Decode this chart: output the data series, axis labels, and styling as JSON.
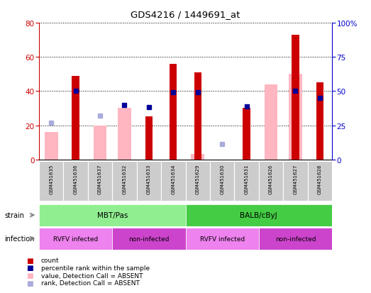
{
  "title": "GDS4216 / 1449691_at",
  "samples": [
    "GSM451635",
    "GSM451636",
    "GSM451637",
    "GSM451632",
    "GSM451633",
    "GSM451634",
    "GSM451629",
    "GSM451630",
    "GSM451631",
    "GSM451626",
    "GSM451627",
    "GSM451628"
  ],
  "count_values": [
    0,
    49,
    0,
    0,
    25,
    56,
    51,
    0,
    30,
    0,
    73,
    45
  ],
  "percentile_rank": [
    0,
    50,
    0,
    40,
    38,
    49,
    49,
    0,
    39,
    0,
    50,
    45
  ],
  "absent_value": [
    16,
    0,
    20,
    30,
    0,
    0,
    3,
    0,
    0,
    44,
    50,
    0
  ],
  "absent_rank": [
    27,
    0,
    32,
    0,
    0,
    0,
    0,
    11,
    0,
    0,
    0,
    0
  ],
  "has_count": [
    false,
    true,
    false,
    false,
    true,
    true,
    true,
    false,
    true,
    false,
    true,
    true
  ],
  "has_rank": [
    false,
    true,
    false,
    true,
    true,
    true,
    true,
    false,
    true,
    false,
    true,
    true
  ],
  "has_absent_value": [
    true,
    false,
    true,
    true,
    false,
    false,
    true,
    false,
    false,
    true,
    true,
    false
  ],
  "has_absent_rank": [
    true,
    false,
    true,
    false,
    false,
    false,
    false,
    true,
    false,
    false,
    false,
    false
  ],
  "strain_groups": [
    {
      "label": "MBT/Pas",
      "start": 0,
      "end": 6,
      "color": "#90EE90"
    },
    {
      "label": "BALB/cByJ",
      "start": 6,
      "end": 12,
      "color": "#44CC44"
    }
  ],
  "infection_groups": [
    {
      "label": "RVFV infected",
      "start": 0,
      "end": 3,
      "color": "#EE82EE"
    },
    {
      "label": "non-infected",
      "start": 3,
      "end": 6,
      "color": "#CC44CC"
    },
    {
      "label": "RVFV infected",
      "start": 6,
      "end": 9,
      "color": "#EE82EE"
    },
    {
      "label": "non-infected",
      "start": 9,
      "end": 12,
      "color": "#CC44CC"
    }
  ],
  "ylim_left": [
    0,
    80
  ],
  "ylim_right": [
    0,
    100
  ],
  "yticks_left": [
    0,
    20,
    40,
    60,
    80
  ],
  "yticks_right": [
    0,
    25,
    50,
    75,
    100
  ],
  "count_color": "#CC0000",
  "rank_color": "#000099",
  "absent_value_color": "#FFB6C1",
  "absent_rank_color": "#AAAADD",
  "grid_color": "black",
  "axis_color_left": "#CC0000",
  "axis_color_right": "#0000CC",
  "sample_bg_color": "#CCCCCC"
}
